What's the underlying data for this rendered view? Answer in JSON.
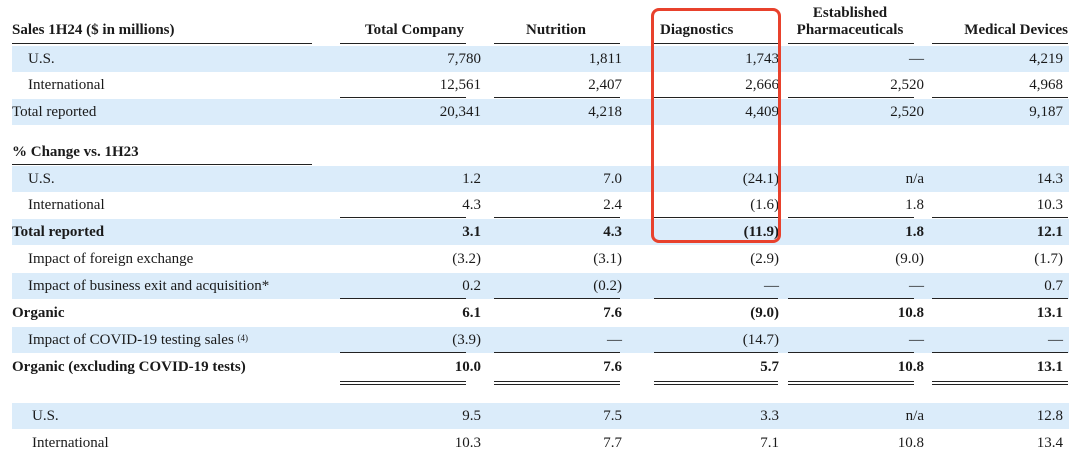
{
  "header": {
    "title": "Sales 1H24 ($ in millions)",
    "columns": [
      "Total Company",
      "Nutrition",
      "Diagnostics",
      "Established Pharmaceuticals",
      "Medical Devices"
    ],
    "established_line1": "Established",
    "established_line2": "Pharmaceuticals"
  },
  "sales": {
    "us": {
      "label": "U.S.",
      "values": [
        "7,780",
        "1,811",
        "1,743",
        "—",
        "4,219"
      ]
    },
    "intl": {
      "label": "International",
      "values": [
        "12,561",
        "2,407",
        "2,666",
        "2,520",
        "4,968"
      ]
    },
    "total": {
      "label": "Total reported",
      "values": [
        "20,341",
        "4,218",
        "4,409",
        "2,520",
        "9,187"
      ]
    }
  },
  "pct_section": {
    "title": "% Change vs. 1H23",
    "us": {
      "label": "U.S.",
      "values": [
        "1.2",
        "7.0",
        "(24.1)",
        "n/a",
        "14.3"
      ]
    },
    "intl": {
      "label": "International",
      "values": [
        "4.3",
        "2.4",
        "(1.6)",
        "1.8",
        "10.3"
      ]
    },
    "total": {
      "label": "Total reported",
      "values": [
        "3.1",
        "4.3",
        "(11.9)",
        "1.8",
        "12.1"
      ]
    },
    "fx": {
      "label": "Impact of foreign exchange",
      "values": [
        "(3.2)",
        "(3.1)",
        "(2.9)",
        "(9.0)",
        "(1.7)"
      ]
    },
    "exit": {
      "label": "Impact of business exit and acquisition*",
      "values": [
        "0.2",
        "(0.2)",
        "—",
        "—",
        "0.7"
      ]
    },
    "organic": {
      "label": "Organic",
      "values": [
        "6.1",
        "7.6",
        "(9.0)",
        "10.8",
        "13.1"
      ]
    },
    "covid": {
      "label": "Impact of COVID-19 testing sales",
      "footnote": "(4)",
      "values": [
        "(3.9)",
        "—",
        "(14.7)",
        "—",
        "—"
      ]
    },
    "organic_ex": {
      "label": "Organic (excluding COVID-19 tests)",
      "values": [
        "10.0",
        "7.6",
        "5.7",
        "10.8",
        "13.1"
      ]
    }
  },
  "organic_split": {
    "us": {
      "label": "U.S.",
      "values": [
        "9.5",
        "7.5",
        "3.3",
        "n/a",
        "12.8"
      ]
    },
    "intl": {
      "label": "International",
      "values": [
        "10.3",
        "7.7",
        "7.1",
        "10.8",
        "13.4"
      ]
    }
  },
  "colors": {
    "shade": "#dbecfa",
    "highlight": "#e8412c"
  }
}
